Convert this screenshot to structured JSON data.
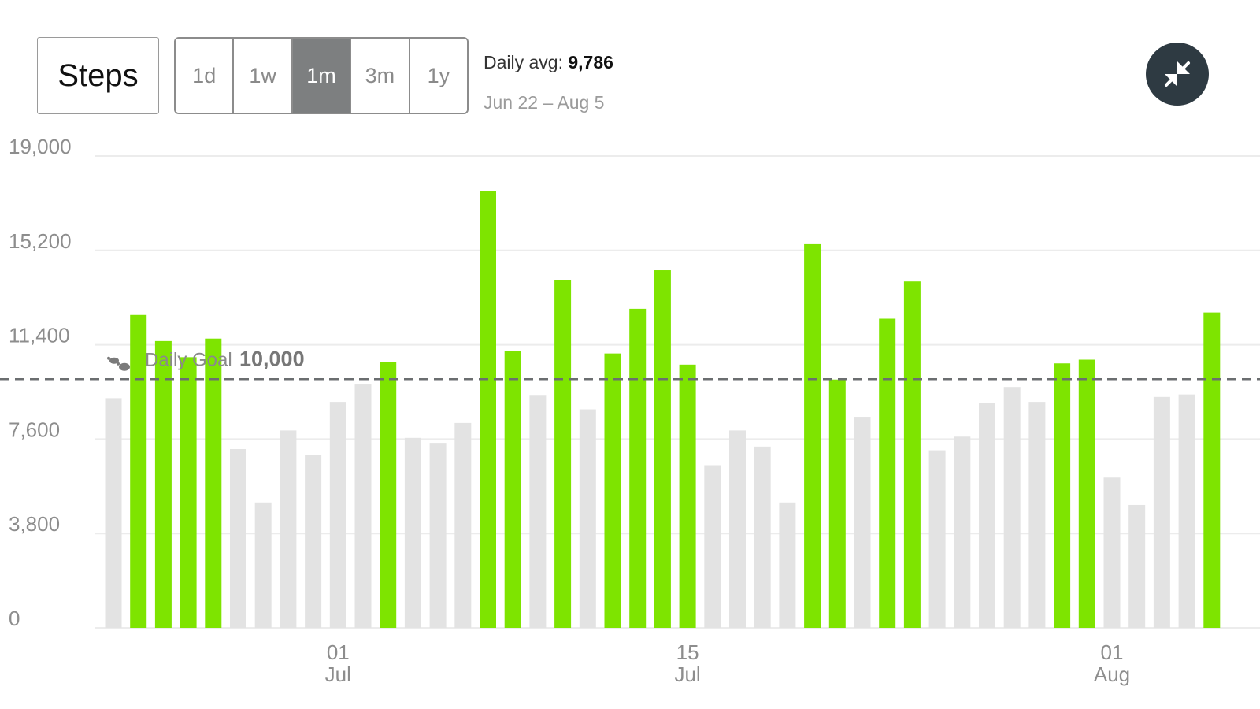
{
  "header": {
    "metric_label": "Steps",
    "ranges": [
      "1d",
      "1w",
      "1m",
      "3m",
      "1y"
    ],
    "active_range": "1m",
    "avg_label": "Daily avg:",
    "avg_value": "9,786",
    "date_range": "Jun 22 – Aug 5",
    "collapse_icon": "collapse-arrows-icon"
  },
  "chart_data": {
    "type": "bar",
    "ylim": [
      0,
      19000
    ],
    "yticks": [
      {
        "value": 19000,
        "label": "19,000"
      },
      {
        "value": 15200,
        "label": "15,200"
      },
      {
        "value": 11400,
        "label": "11,400"
      },
      {
        "value": 7600,
        "label": "7,600"
      },
      {
        "value": 3800,
        "label": "3,800"
      },
      {
        "value": 0,
        "label": "0"
      }
    ],
    "categories": [
      "Jun 22",
      "Jun 23",
      "Jun 24",
      "Jun 25",
      "Jun 26",
      "Jun 27",
      "Jun 28",
      "Jun 29",
      "Jun 30",
      "Jul 1",
      "Jul 2",
      "Jul 3",
      "Jul 4",
      "Jul 5",
      "Jul 6",
      "Jul 7",
      "Jul 8",
      "Jul 9",
      "Jul 10",
      "Jul 11",
      "Jul 12",
      "Jul 13",
      "Jul 14",
      "Jul 15",
      "Jul 16",
      "Jul 17",
      "Jul 18",
      "Jul 19",
      "Jul 20",
      "Jul 21",
      "Jul 22",
      "Jul 23",
      "Jul 24",
      "Jul 25",
      "Jul 26",
      "Jul 27",
      "Jul 28",
      "Jul 29",
      "Jul 30",
      "Jul 31",
      "Aug 1",
      "Aug 2",
      "Aug 3",
      "Aug 4",
      "Aug 5"
    ],
    "values": [
      9250,
      12600,
      11550,
      10900,
      11650,
      7200,
      5050,
      7950,
      6950,
      9100,
      9800,
      10700,
      7650,
      7450,
      8250,
      17600,
      11150,
      9350,
      14000,
      8800,
      11050,
      12850,
      14400,
      10600,
      6550,
      7950,
      7300,
      5050,
      15450,
      10000,
      8500,
      12450,
      13950,
      7150,
      7700,
      9050,
      9700,
      9100,
      10650,
      10800,
      6050,
      4950,
      9300,
      9400,
      12700
    ],
    "goal_value": 10000,
    "goal_label": "Daily Goal",
    "goal_value_label": "10,000",
    "goal_icon": "footsteps-icon",
    "xticks": [
      {
        "index": 9,
        "day": "01",
        "month": "Jul"
      },
      {
        "index": 23,
        "day": "15",
        "month": "Jul"
      },
      {
        "index": 40,
        "day": "01",
        "month": "Aug"
      }
    ],
    "colors": {
      "met_goal": "#7ee400",
      "below_goal": "#e3e3e3",
      "goal_line": "#6b6e70",
      "grid": "#ececec",
      "axis_text": "#8d8d8d"
    },
    "grid": true
  }
}
